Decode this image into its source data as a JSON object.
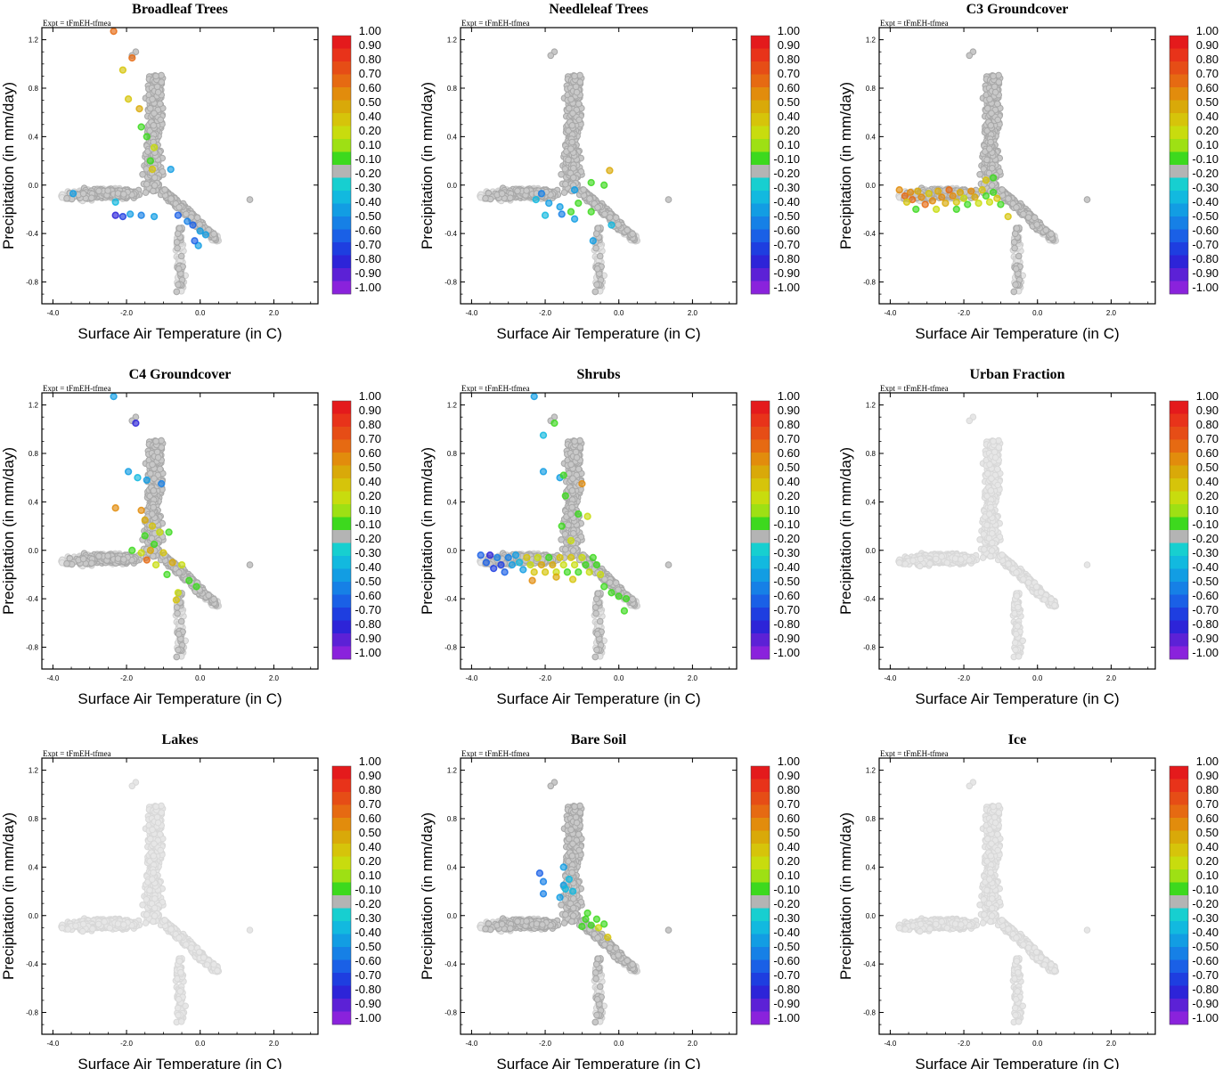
{
  "figure": {
    "expt_label": "Expt = tFmEH-tfmea",
    "xlabel": "Surface Air Temperature (in C)",
    "ylabel": "Precipitation (in mm/day)",
    "xlim": [
      -4.3,
      3.2
    ],
    "ylim": [
      -0.98,
      1.3
    ],
    "x_ticks": [
      -4.0,
      -2.0,
      0.0,
      2.0
    ],
    "x_tick_labels": [
      "-4.0",
      "-2.0",
      "0.0",
      "2.0"
    ],
    "y_ticks": [
      1.2,
      0.8,
      0.4,
      0.0,
      -0.4,
      -0.8
    ],
    "y_tick_labels": [
      "1.2",
      "0.8",
      "0.4",
      "0.0",
      "-0.4",
      "-0.8"
    ]
  },
  "colorbar": {
    "labels": [
      "1.00",
      "0.90",
      "0.80",
      "0.70",
      "0.60",
      "0.50",
      "0.40",
      "0.20",
      "0.10",
      "-0.10",
      "-0.20",
      "-0.30",
      "-0.40",
      "-0.50",
      "-0.60",
      "-0.70",
      "-0.80",
      "-0.90",
      "-1.00"
    ],
    "colors": [
      "#e41a1c",
      "#e8331a",
      "#e64d16",
      "#e66a12",
      "#e28c0c",
      "#d9a909",
      "#d6c40a",
      "#c8dc0e",
      "#9ee014",
      "#3dd91e",
      "#b4b4b4",
      "#17cfd0",
      "#12b9df",
      "#129de3",
      "#1680e6",
      "#1a60e6",
      "#1e3ee0",
      "#2d24d8",
      "#5c21d6",
      "#8a22dc"
    ]
  },
  "chart_data": [
    {
      "type": "scatter",
      "title": "Broadleaf Trees",
      "ylabel": "Precipitation (in mm/day)",
      "xlabel": "Surface Air Temperature (in C)",
      "colored_points": [
        {
          "x": -2.35,
          "y": 1.27,
          "v": 0.65
        },
        {
          "x": -1.85,
          "y": 1.05,
          "v": 0.6
        },
        {
          "x": -2.1,
          "y": 0.95,
          "v": 0.35
        },
        {
          "x": -1.95,
          "y": 0.71,
          "v": 0.3
        },
        {
          "x": -1.65,
          "y": 0.63,
          "v": 0.45
        },
        {
          "x": -1.6,
          "y": 0.48,
          "v": 0.15
        },
        {
          "x": -1.45,
          "y": 0.4,
          "v": 0.15
        },
        {
          "x": -1.25,
          "y": 0.31,
          "v": 0.25
        },
        {
          "x": -1.35,
          "y": 0.2,
          "v": 0.12
        },
        {
          "x": -1.3,
          "y": 0.13,
          "v": 0.3
        },
        {
          "x": -0.8,
          "y": 0.13,
          "v": -0.35
        },
        {
          "x": -3.45,
          "y": -0.07,
          "v": -0.35
        },
        {
          "x": -2.3,
          "y": -0.14,
          "v": -0.25
        },
        {
          "x": -2.3,
          "y": -0.25,
          "v": -0.7
        },
        {
          "x": -2.1,
          "y": -0.26,
          "v": -0.65
        },
        {
          "x": -1.9,
          "y": -0.24,
          "v": -0.35
        },
        {
          "x": -1.6,
          "y": -0.25,
          "v": -0.4
        },
        {
          "x": -1.25,
          "y": -0.26,
          "v": -0.3
        },
        {
          "x": -0.6,
          "y": -0.25,
          "v": -0.5
        },
        {
          "x": -0.35,
          "y": -0.3,
          "v": -0.45
        },
        {
          "x": -0.2,
          "y": -0.33,
          "v": -0.5
        },
        {
          "x": 0.0,
          "y": -0.38,
          "v": -0.35
        },
        {
          "x": 0.15,
          "y": -0.41,
          "v": -0.3
        },
        {
          "x": -0.05,
          "y": -0.5,
          "v": -0.3
        },
        {
          "x": -0.15,
          "y": -0.46,
          "v": -0.55
        }
      ]
    },
    {
      "type": "scatter",
      "title": "Needleleaf Trees",
      "ylabel": "Precipitation (in mm/day)",
      "xlabel": "Surface Air Temperature (in C)",
      "colored_points": [
        {
          "x": -0.25,
          "y": 0.12,
          "v": 0.45
        },
        {
          "x": -0.75,
          "y": 0.02,
          "v": 0.15
        },
        {
          "x": -0.4,
          "y": 0.0,
          "v": 0.12
        },
        {
          "x": -1.2,
          "y": -0.04,
          "v": -0.3
        },
        {
          "x": -2.1,
          "y": -0.07,
          "v": -0.4
        },
        {
          "x": -2.25,
          "y": -0.12,
          "v": -0.25
        },
        {
          "x": -1.9,
          "y": -0.15,
          "v": -0.35
        },
        {
          "x": -1.6,
          "y": -0.18,
          "v": -0.3
        },
        {
          "x": -1.1,
          "y": -0.15,
          "v": 0.15
        },
        {
          "x": -1.3,
          "y": -0.22,
          "v": 0.15
        },
        {
          "x": -1.55,
          "y": -0.24,
          "v": -0.45
        },
        {
          "x": -0.75,
          "y": -0.22,
          "v": 0.12
        },
        {
          "x": -1.2,
          "y": -0.28,
          "v": -0.3
        },
        {
          "x": -2.0,
          "y": -0.25,
          "v": -0.25
        },
        {
          "x": -0.2,
          "y": -0.33,
          "v": -0.2
        },
        {
          "x": -0.7,
          "y": -0.46,
          "v": -0.3
        }
      ]
    },
    {
      "type": "scatter",
      "title": "C3 Groundcover",
      "ylabel": "Precipitation (in mm/day)",
      "xlabel": "Surface Air Temperature (in C)",
      "colored_points": [
        {
          "x": -3.75,
          "y": -0.04,
          "v": 0.55
        },
        {
          "x": -3.6,
          "y": -0.09,
          "v": 0.6
        },
        {
          "x": -3.45,
          "y": -0.06,
          "v": 0.5
        },
        {
          "x": -3.4,
          "y": -0.12,
          "v": 0.65
        },
        {
          "x": -3.25,
          "y": -0.05,
          "v": 0.45
        },
        {
          "x": -3.15,
          "y": -0.1,
          "v": 0.55
        },
        {
          "x": -3.05,
          "y": -0.16,
          "v": 0.6
        },
        {
          "x": -2.95,
          "y": -0.07,
          "v": 0.35
        },
        {
          "x": -2.85,
          "y": -0.13,
          "v": 0.5
        },
        {
          "x": -2.7,
          "y": -0.05,
          "v": 0.45
        },
        {
          "x": -2.6,
          "y": -0.1,
          "v": 0.55
        },
        {
          "x": -2.5,
          "y": -0.15,
          "v": 0.4
        },
        {
          "x": -2.4,
          "y": -0.04,
          "v": 0.65
        },
        {
          "x": -2.3,
          "y": -0.09,
          "v": 0.5
        },
        {
          "x": -2.2,
          "y": -0.14,
          "v": 0.3
        },
        {
          "x": -2.1,
          "y": -0.06,
          "v": 0.45
        },
        {
          "x": -2.0,
          "y": -0.11,
          "v": 0.2
        },
        {
          "x": -1.9,
          "y": -0.16,
          "v": 0.15
        },
        {
          "x": -1.8,
          "y": -0.05,
          "v": 0.55
        },
        {
          "x": -1.7,
          "y": -0.1,
          "v": 0.4
        },
        {
          "x": -1.6,
          "y": -0.15,
          "v": 0.25
        },
        {
          "x": -1.5,
          "y": -0.04,
          "v": 0.3
        },
        {
          "x": -1.4,
          "y": -0.09,
          "v": 0.15
        },
        {
          "x": -1.3,
          "y": -0.14,
          "v": 0.2
        },
        {
          "x": -1.2,
          "y": -0.06,
          "v": 0.15
        },
        {
          "x": -1.1,
          "y": -0.11,
          "v": 0.3
        },
        {
          "x": -1.0,
          "y": -0.16,
          "v": 0.15
        },
        {
          "x": -3.55,
          "y": -0.14,
          "v": 0.3
        },
        {
          "x": -3.3,
          "y": -0.2,
          "v": 0.15
        },
        {
          "x": -2.75,
          "y": -0.2,
          "v": 0.2
        },
        {
          "x": -2.2,
          "y": -0.2,
          "v": 0.15
        },
        {
          "x": -1.4,
          "y": 0.04,
          "v": 0.3
        },
        {
          "x": -0.8,
          "y": -0.26,
          "v": 0.35
        },
        {
          "x": -1.2,
          "y": 0.06,
          "v": 0.12
        }
      ]
    },
    {
      "type": "scatter",
      "title": "C4 Groundcover",
      "ylabel": "Precipitation (in mm/day)",
      "xlabel": "Surface Air Temperature (in C)",
      "colored_points": [
        {
          "x": -2.35,
          "y": 1.27,
          "v": -0.3
        },
        {
          "x": -1.75,
          "y": 1.05,
          "v": -0.7
        },
        {
          "x": -1.95,
          "y": 0.65,
          "v": -0.3
        },
        {
          "x": -1.7,
          "y": 0.6,
          "v": -0.25
        },
        {
          "x": -1.45,
          "y": 0.58,
          "v": -0.3
        },
        {
          "x": -1.05,
          "y": 0.55,
          "v": -0.4
        },
        {
          "x": -2.3,
          "y": 0.35,
          "v": 0.55
        },
        {
          "x": -1.6,
          "y": 0.33,
          "v": 0.5
        },
        {
          "x": -1.5,
          "y": 0.25,
          "v": 0.4
        },
        {
          "x": -1.3,
          "y": 0.2,
          "v": 0.3
        },
        {
          "x": -1.1,
          "y": 0.15,
          "v": 0.2
        },
        {
          "x": -1.5,
          "y": 0.12,
          "v": 0.15
        },
        {
          "x": -1.85,
          "y": 0.0,
          "v": 0.15
        },
        {
          "x": -1.6,
          "y": -0.02,
          "v": 0.2
        },
        {
          "x": -1.35,
          "y": 0.0,
          "v": 0.4
        },
        {
          "x": -1.0,
          "y": -0.02,
          "v": 0.3
        },
        {
          "x": -0.75,
          "y": -0.1,
          "v": 0.45
        },
        {
          "x": -1.45,
          "y": -0.08,
          "v": 0.6
        },
        {
          "x": -1.2,
          "y": -0.12,
          "v": 0.25
        },
        {
          "x": -0.9,
          "y": -0.2,
          "v": 0.15
        },
        {
          "x": -0.5,
          "y": -0.12,
          "v": 0.2
        },
        {
          "x": -0.3,
          "y": -0.25,
          "v": 0.15
        },
        {
          "x": -0.6,
          "y": -0.35,
          "v": 0.2
        },
        {
          "x": -0.65,
          "y": -0.41,
          "v": 0.3
        },
        {
          "x": -0.1,
          "y": -0.3,
          "v": 0.15
        },
        {
          "x": -0.85,
          "y": 0.15,
          "v": 0.15
        },
        {
          "x": -1.25,
          "y": 0.05,
          "v": 0.15
        }
      ]
    },
    {
      "type": "scatter",
      "title": "Shrubs",
      "ylabel": "Precipitation (in mm/day)",
      "xlabel": "Surface Air Temperature (in C)",
      "colored_points": [
        {
          "x": -2.3,
          "y": 1.27,
          "v": -0.3
        },
        {
          "x": -1.75,
          "y": 1.05,
          "v": 0.15
        },
        {
          "x": -2.05,
          "y": 0.95,
          "v": -0.25
        },
        {
          "x": -2.05,
          "y": 0.65,
          "v": -0.3
        },
        {
          "x": -1.6,
          "y": 0.6,
          "v": -0.3
        },
        {
          "x": -1.5,
          "y": 0.62,
          "v": 0.15
        },
        {
          "x": -1.0,
          "y": 0.55,
          "v": 0.5
        },
        {
          "x": -1.45,
          "y": 0.45,
          "v": 0.15
        },
        {
          "x": -1.1,
          "y": 0.3,
          "v": 0.15
        },
        {
          "x": -0.85,
          "y": 0.28,
          "v": 0.25
        },
        {
          "x": -1.55,
          "y": 0.2,
          "v": 0.15
        },
        {
          "x": -1.3,
          "y": 0.08,
          "v": 0.2
        },
        {
          "x": -3.75,
          "y": -0.04,
          "v": -0.5
        },
        {
          "x": -3.6,
          "y": -0.1,
          "v": -0.55
        },
        {
          "x": -3.5,
          "y": -0.04,
          "v": -0.7
        },
        {
          "x": -3.4,
          "y": -0.15,
          "v": -0.6
        },
        {
          "x": -3.3,
          "y": -0.06,
          "v": -0.45
        },
        {
          "x": -3.2,
          "y": -0.12,
          "v": -0.65
        },
        {
          "x": -3.1,
          "y": -0.18,
          "v": -0.55
        },
        {
          "x": -3.0,
          "y": -0.06,
          "v": -0.4
        },
        {
          "x": -2.9,
          "y": -0.12,
          "v": -0.35
        },
        {
          "x": -2.8,
          "y": -0.04,
          "v": -0.3
        },
        {
          "x": -2.7,
          "y": -0.1,
          "v": -0.25
        },
        {
          "x": -2.6,
          "y": -0.16,
          "v": -0.35
        },
        {
          "x": -2.5,
          "y": -0.06,
          "v": 0.3
        },
        {
          "x": -2.4,
          "y": -0.12,
          "v": 0.25
        },
        {
          "x": -2.3,
          "y": -0.18,
          "v": 0.35
        },
        {
          "x": -2.2,
          "y": -0.06,
          "v": 0.2
        },
        {
          "x": -2.1,
          "y": -0.12,
          "v": 0.45
        },
        {
          "x": -2.0,
          "y": -0.18,
          "v": 0.3
        },
        {
          "x": -1.9,
          "y": -0.06,
          "v": 0.15
        },
        {
          "x": -1.8,
          "y": -0.12,
          "v": 0.4
        },
        {
          "x": -1.7,
          "y": -0.18,
          "v": 0.25
        },
        {
          "x": -1.6,
          "y": -0.06,
          "v": 0.35
        },
        {
          "x": -1.5,
          "y": -0.12,
          "v": 0.2
        },
        {
          "x": -1.4,
          "y": -0.18,
          "v": 0.15
        },
        {
          "x": -1.3,
          "y": -0.06,
          "v": 0.3
        },
        {
          "x": -1.2,
          "y": -0.12,
          "v": 0.2
        },
        {
          "x": -1.1,
          "y": -0.18,
          "v": 0.15
        },
        {
          "x": -1.0,
          "y": -0.06,
          "v": 0.25
        },
        {
          "x": -0.9,
          "y": -0.12,
          "v": 0.15
        },
        {
          "x": -0.8,
          "y": -0.18,
          "v": 0.2
        },
        {
          "x": -0.7,
          "y": -0.06,
          "v": 0.15
        },
        {
          "x": -0.6,
          "y": -0.12,
          "v": 0.15
        },
        {
          "x": -0.5,
          "y": -0.2,
          "v": 0.2
        },
        {
          "x": -2.35,
          "y": -0.25,
          "v": 0.5
        },
        {
          "x": -1.7,
          "y": -0.22,
          "v": 0.45
        },
        {
          "x": -1.25,
          "y": -0.24,
          "v": 0.3
        },
        {
          "x": -0.4,
          "y": -0.3,
          "v": 0.15
        },
        {
          "x": -0.2,
          "y": -0.35,
          "v": 0.15
        },
        {
          "x": 0.0,
          "y": -0.38,
          "v": 0.15
        },
        {
          "x": 0.15,
          "y": -0.5,
          "v": 0.15
        },
        {
          "x": 0.2,
          "y": -0.4,
          "v": 0.15
        }
      ]
    },
    {
      "type": "scatter",
      "title": "Urban Fraction",
      "ylabel": "Precipitation (in mm/day)",
      "xlabel": "Surface Air Temperature (in C)",
      "colored_points": []
    },
    {
      "type": "scatter",
      "title": "Lakes",
      "ylabel": "Precipitation (in mm/day)",
      "xlabel": "Surface Air Temperature (in C)",
      "colored_points": []
    },
    {
      "type": "scatter",
      "title": "Bare Soil",
      "ylabel": "Precipitation (in mm/day)",
      "xlabel": "Surface Air Temperature (in C)",
      "colored_points": [
        {
          "x": -2.15,
          "y": 0.35,
          "v": -0.55
        },
        {
          "x": -2.05,
          "y": 0.28,
          "v": -0.4
        },
        {
          "x": -2.05,
          "y": 0.18,
          "v": -0.45
        },
        {
          "x": -1.5,
          "y": 0.25,
          "v": -0.3
        },
        {
          "x": -1.6,
          "y": 0.15,
          "v": -0.35
        },
        {
          "x": -1.35,
          "y": 0.3,
          "v": -0.25
        },
        {
          "x": -1.5,
          "y": 0.4,
          "v": -0.3
        },
        {
          "x": -1.45,
          "y": 0.22,
          "v": -0.2
        },
        {
          "x": -1.25,
          "y": 0.2,
          "v": -0.25
        },
        {
          "x": -0.9,
          "y": -0.03,
          "v": 0.15
        },
        {
          "x": -0.75,
          "y": -0.08,
          "v": 0.15
        },
        {
          "x": -0.55,
          "y": -0.1,
          "v": 0.2
        },
        {
          "x": -0.4,
          "y": -0.07,
          "v": 0.15
        },
        {
          "x": -1.0,
          "y": -0.09,
          "v": 0.12
        },
        {
          "x": -0.6,
          "y": -0.03,
          "v": 0.15
        },
        {
          "x": -0.3,
          "y": -0.18,
          "v": 0.35
        },
        {
          "x": -0.85,
          "y": 0.02,
          "v": 0.12
        }
      ]
    },
    {
      "type": "scatter",
      "title": "Ice",
      "ylabel": "Precipitation (in mm/day)",
      "xlabel": "Surface Air Temperature (in C)",
      "colored_points": []
    }
  ]
}
